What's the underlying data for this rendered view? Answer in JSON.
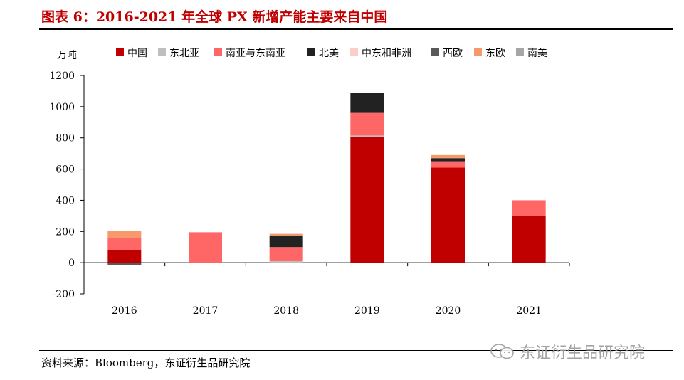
{
  "header": {
    "title": "图表 6：2016-2021 年全球 PX 新增产能主要来自中国"
  },
  "footer": {
    "source": "资料来源：Bloomberg，东证衍生品研究院",
    "watermark": "东证衍生品研究院",
    "watermark_icon": "wechat-icon"
  },
  "chart_data": {
    "type": "bar",
    "stacked": true,
    "unit_label": "万吨",
    "categories": [
      "2016",
      "2017",
      "2018",
      "2019",
      "2020",
      "2021"
    ],
    "ylim": [
      -200,
      1200
    ],
    "yticks": [
      -200,
      0,
      200,
      400,
      600,
      800,
      1000,
      1200
    ],
    "grid": false,
    "legend_position": "top",
    "series": [
      {
        "name": "中国",
        "color": "#c00000",
        "values": [
          80,
          0,
          0,
          805,
          610,
          300
        ]
      },
      {
        "name": "东北亚",
        "color": "#bfbfbf",
        "values": [
          0,
          0,
          10,
          10,
          0,
          0
        ]
      },
      {
        "name": "南亚与东南亚",
        "color": "#ff6666",
        "values": [
          80,
          195,
          90,
          145,
          40,
          100
        ]
      },
      {
        "name": "北美",
        "color": "#222222",
        "values": [
          0,
          0,
          75,
          130,
          20,
          0
        ]
      },
      {
        "name": "中东和非洲",
        "color": "#ffcccc",
        "values": [
          0,
          0,
          0,
          0,
          0,
          0
        ]
      },
      {
        "name": "西欧",
        "color": "#595959",
        "values": [
          -15,
          0,
          0,
          0,
          0,
          0
        ]
      },
      {
        "name": "东欧",
        "color": "#f79a6b",
        "values": [
          45,
          0,
          10,
          0,
          20,
          0
        ]
      },
      {
        "name": "南美",
        "color": "#a6a6a6",
        "values": [
          0,
          0,
          0,
          0,
          0,
          0
        ]
      }
    ]
  }
}
